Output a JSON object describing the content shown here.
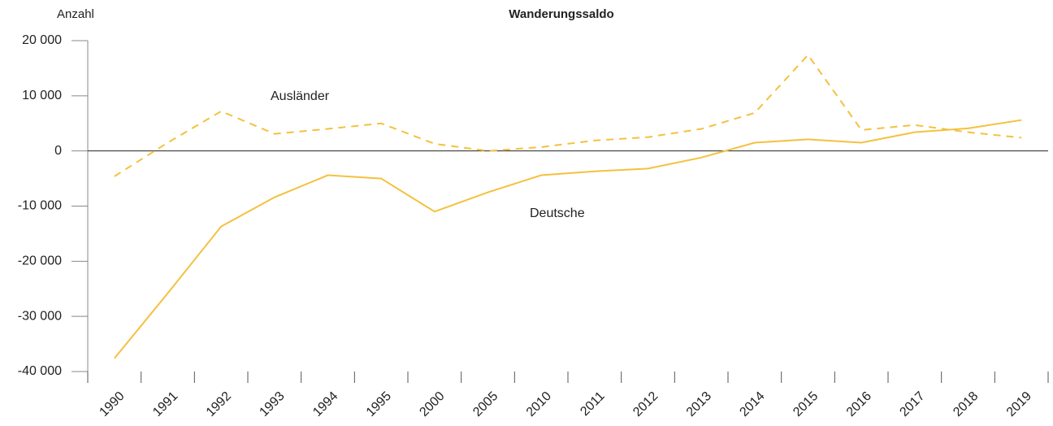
{
  "chart_data": {
    "type": "line",
    "title": "Wanderungssaldo",
    "y_label": "Anzahl",
    "categories": [
      "1990",
      "1991",
      "1992",
      "1993",
      "1994",
      "1995",
      "2000",
      "2005",
      "2010",
      "2011",
      "2012",
      "2013",
      "2014",
      "2015",
      "2016",
      "2017",
      "2018",
      "2019"
    ],
    "series": [
      {
        "name": "Deutsche",
        "color": "#f4c13f",
        "style": "solid",
        "values": [
          -37600,
          -25800,
          -13700,
          -8400,
          -4400,
          -5000,
          -11000,
          -7500,
          -4400,
          -3700,
          -3200,
          -1200,
          1500,
          2100,
          1500,
          3400,
          4100,
          5600
        ]
      },
      {
        "name": "Ausländer",
        "color": "#f4c13f",
        "style": "dashed",
        "values": [
          -4600,
          1500,
          7200,
          3100,
          4000,
          5000,
          1300,
          0,
          700,
          1900,
          2500,
          4000,
          6900,
          17400,
          3800,
          4700,
          3400,
          2400
        ]
      }
    ],
    "ylim": [
      -40000,
      20000
    ],
    "yticks": [
      {
        "value": 20000,
        "label": "20 000"
      },
      {
        "value": 10000,
        "label": "10 000"
      },
      0,
      {
        "value": -10000,
        "label": "-10 000"
      },
      {
        "value": -20000,
        "label": "-20 000"
      },
      {
        "value": -30000,
        "label": "-30 000"
      },
      {
        "value": -40000,
        "label": "-40 000"
      }
    ],
    "zero_line": true
  }
}
